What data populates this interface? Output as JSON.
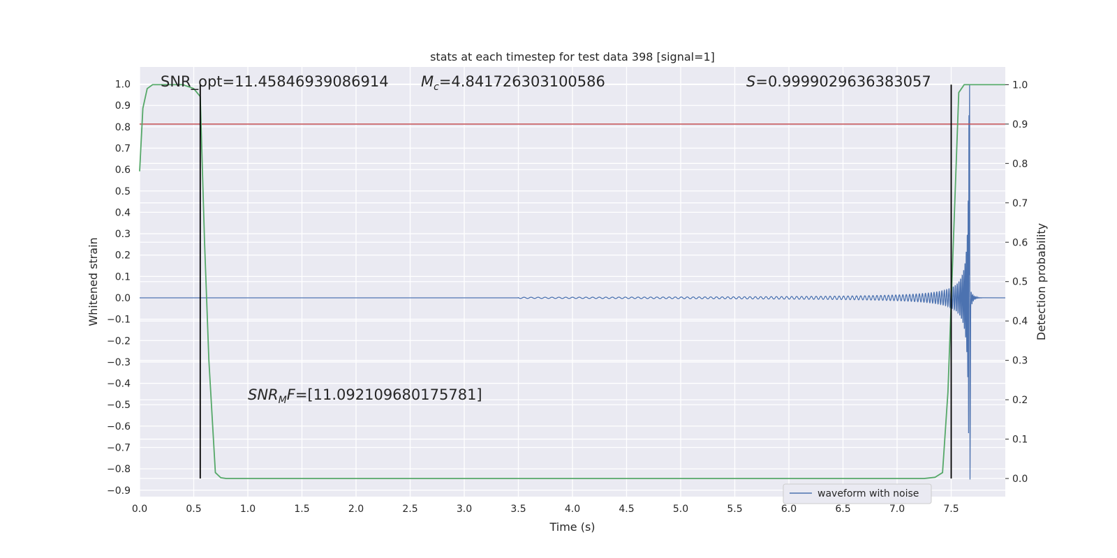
{
  "chart_data": {
    "type": "line",
    "title": "stats at each timestep for test data 398 [signal=1]",
    "xlabel": "Time (s)",
    "ylabel_left": "Whitened strain",
    "ylabel_right": "Detection probability",
    "xlim": [
      0.0,
      8.0
    ],
    "ylim_left": [
      -0.93,
      1.08
    ],
    "ylim_right": [
      -0.046,
      1.045
    ],
    "x_ticks": [
      "0.0",
      "0.5",
      "1.0",
      "1.5",
      "2.0",
      "2.5",
      "3.0",
      "3.5",
      "4.0",
      "4.5",
      "5.0",
      "5.5",
      "6.0",
      "6.5",
      "7.0",
      "7.5"
    ],
    "y_ticks_left": [
      "1.0",
      "0.9",
      "0.8",
      "0.7",
      "0.6",
      "0.5",
      "0.4",
      "0.3",
      "0.2",
      "0.1",
      "0.0",
      "−0.1",
      "−0.2",
      "−0.3",
      "−0.4",
      "−0.5",
      "−0.6",
      "−0.7",
      "−0.8",
      "−0.9"
    ],
    "y_ticks_right": [
      "1.0",
      "0.9",
      "0.8",
      "0.7",
      "0.6",
      "0.5",
      "0.4",
      "0.3",
      "0.2",
      "0.1",
      "0.0"
    ],
    "grid": true,
    "legend_position": "lower-right",
    "series": [
      {
        "name": "waveform with noise",
        "axis": "left",
        "color": "#4c72b0",
        "description_values": {
          "t_start": 3.5,
          "t_merger": 7.67,
          "peak_amplitude": 1.0,
          "min_amplitude": -0.85
        }
      },
      {
        "axis": "right",
        "color": "#55a868",
        "x": [
          0.0,
          0.03,
          0.07,
          0.12,
          0.2,
          0.3,
          0.4,
          0.5,
          0.56,
          0.6,
          0.64,
          0.7,
          0.75,
          0.8,
          1.0,
          2.0,
          3.0,
          4.0,
          5.0,
          6.0,
          7.0,
          7.25,
          7.35,
          7.42,
          7.47,
          7.52,
          7.57,
          7.62,
          7.7,
          8.0
        ],
        "y": [
          0.78,
          0.94,
          0.99,
          1.0,
          1.0,
          1.0,
          1.0,
          0.99,
          0.97,
          0.6,
          0.3,
          0.015,
          0.002,
          0.0,
          0.0,
          0.0,
          0.0,
          0.0,
          0.0,
          0.0,
          0.0,
          0.0,
          0.003,
          0.015,
          0.22,
          0.6,
          0.98,
          1.0,
          1.0,
          1.0
        ]
      }
    ],
    "threshold_line": {
      "axis": "right",
      "value": 0.9,
      "color": "#c44e52"
    },
    "vertical_lines": [
      {
        "x": 0.56,
        "ymin_right": 0.0,
        "ymax_right": 1.0,
        "color": "#000000"
      },
      {
        "x": 7.5,
        "ymin_right": 0.0,
        "ymax_right": 1.0,
        "color": "#000000"
      }
    ],
    "annotations": [
      {
        "id": "snr_opt",
        "text": "SNR_opt=11.45846939086914"
      },
      {
        "id": "mc",
        "symbol": "M",
        "subscript": "c",
        "text": "=4.841726303100586"
      },
      {
        "id": "s",
        "symbol": "S",
        "text": "=0.9999029636383057"
      },
      {
        "id": "snr_mf",
        "symbol": "SNR",
        "subscript": "M",
        "symbol2": "F",
        "text": "=[11.092109680175781]"
      }
    ]
  }
}
